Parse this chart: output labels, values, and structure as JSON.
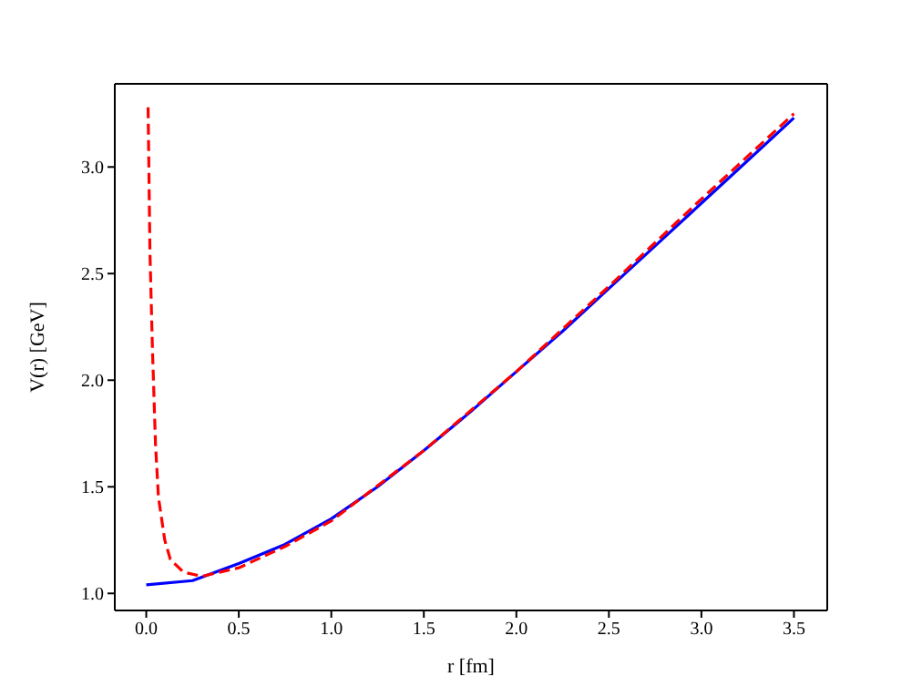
{
  "chart_data": {
    "type": "line",
    "xlabel": "r [fm]",
    "ylabel": "V(r) [GeV]",
    "xlim": [
      -0.17,
      3.68
    ],
    "ylim": [
      0.92,
      3.39
    ],
    "xticks": [
      {
        "value": 0,
        "label": "0.0"
      },
      {
        "value": 0.5,
        "label": "0.5"
      },
      {
        "value": 1,
        "label": "1.0"
      },
      {
        "value": 1.5,
        "label": "1.5"
      },
      {
        "value": 2,
        "label": "2.0"
      },
      {
        "value": 2.5,
        "label": "2.5"
      },
      {
        "value": 3,
        "label": "3.0"
      },
      {
        "value": 3.5,
        "label": "3.5"
      }
    ],
    "yticks": [
      {
        "value": 1,
        "label": "1.0"
      },
      {
        "value": 1.5,
        "label": "1.5"
      },
      {
        "value": 2,
        "label": "2.0"
      },
      {
        "value": 2.5,
        "label": "2.5"
      },
      {
        "value": 3,
        "label": "3.0"
      }
    ],
    "legend": false,
    "marker": "none",
    "series": [
      {
        "color": "#0000ff",
        "line_style": "solid",
        "x": [
          0,
          0.25,
          0.5,
          0.75,
          1.0,
          1.25,
          1.5,
          1.75,
          2.0,
          2.25,
          2.5,
          2.75,
          3.0,
          3.25,
          3.5
        ],
        "values": [
          1.04,
          1.06,
          1.14,
          1.23,
          1.35,
          1.5,
          1.67,
          1.85,
          2.04,
          2.23,
          2.43,
          2.63,
          2.83,
          3.03,
          3.23
        ]
      },
      {
        "color": "#ff0000",
        "line_style": "dashed",
        "x": [
          0.01,
          0.02,
          0.033,
          0.05,
          0.066,
          0.1,
          0.13,
          0.2,
          0.3,
          0.4,
          0.5,
          0.75,
          1.0,
          1.5,
          2.0,
          2.5,
          3.0,
          3.5
        ],
        "values": [
          3.28,
          2.6,
          2.16,
          1.7,
          1.45,
          1.25,
          1.16,
          1.1,
          1.08,
          1.1,
          1.12,
          1.22,
          1.34,
          1.67,
          2.04,
          2.44,
          2.85,
          3.25
        ]
      }
    ]
  }
}
